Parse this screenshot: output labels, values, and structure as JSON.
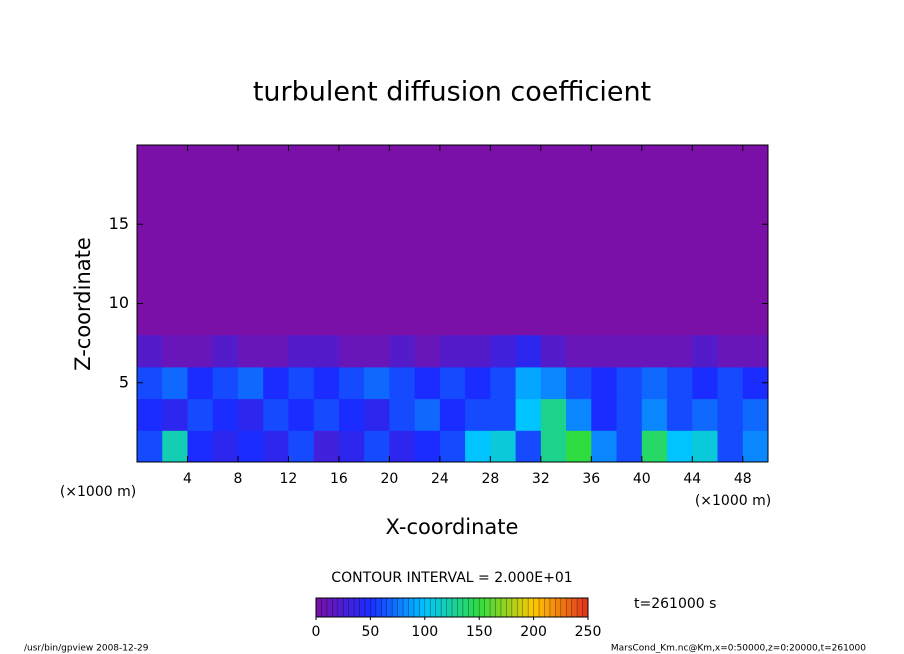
{
  "chart_data": {
    "type": "contour",
    "title": "turbulent diffusion coefficient",
    "xlabel": "X-coordinate",
    "ylabel": "Z-coordinate",
    "x_unit": "(×1000 m)",
    "y_unit": "(×1000 m)",
    "xlim": [
      0,
      50
    ],
    "ylim": [
      0,
      20
    ],
    "xticks": [
      4,
      8,
      12,
      16,
      20,
      24,
      28,
      32,
      36,
      40,
      44,
      48
    ],
    "yticks": [
      5,
      10,
      15
    ],
    "x": [
      1,
      3,
      5,
      7,
      9,
      11,
      13,
      15,
      17,
      19,
      21,
      23,
      25,
      27,
      29,
      31,
      33,
      35,
      37,
      39,
      41,
      43,
      45,
      47,
      49
    ],
    "z": [
      1,
      3,
      5,
      7
    ],
    "values": [
      [
        60,
        120,
        50,
        40,
        50,
        40,
        60,
        30,
        40,
        60,
        40,
        50,
        60,
        100,
        110,
        60,
        130,
        150,
        80,
        60,
        140,
        100,
        110,
        60,
        80
      ],
      [
        50,
        40,
        60,
        50,
        40,
        60,
        50,
        60,
        50,
        40,
        60,
        70,
        50,
        60,
        60,
        100,
        130,
        80,
        50,
        60,
        80,
        60,
        70,
        60,
        70
      ],
      [
        60,
        70,
        50,
        60,
        70,
        50,
        60,
        50,
        60,
        70,
        60,
        50,
        60,
        50,
        60,
        90,
        80,
        60,
        50,
        60,
        70,
        60,
        50,
        60,
        50
      ],
      [
        20,
        10,
        10,
        20,
        10,
        10,
        20,
        20,
        10,
        10,
        20,
        10,
        20,
        20,
        30,
        40,
        20,
        10,
        10,
        10,
        10,
        10,
        20,
        10,
        10
      ]
    ],
    "colormap": [
      "#7b10a8",
      "#1a2cff",
      "#00c4ff",
      "#30dd40",
      "#ffc800",
      "#e03020"
    ],
    "contour_interval": "CONTOUR INTERVAL = 2.000E+01",
    "colorbar_lim": [
      0,
      250
    ],
    "colorbar_ticks": [
      0,
      50,
      100,
      150,
      200,
      250
    ],
    "time_label": "t=261000 s",
    "footer_left": "/usr/bin/gpview  2008-12-29",
    "footer_right": "MarsCond_Km.nc@Km,x=0:50000,z=0:20000,t=261000"
  }
}
